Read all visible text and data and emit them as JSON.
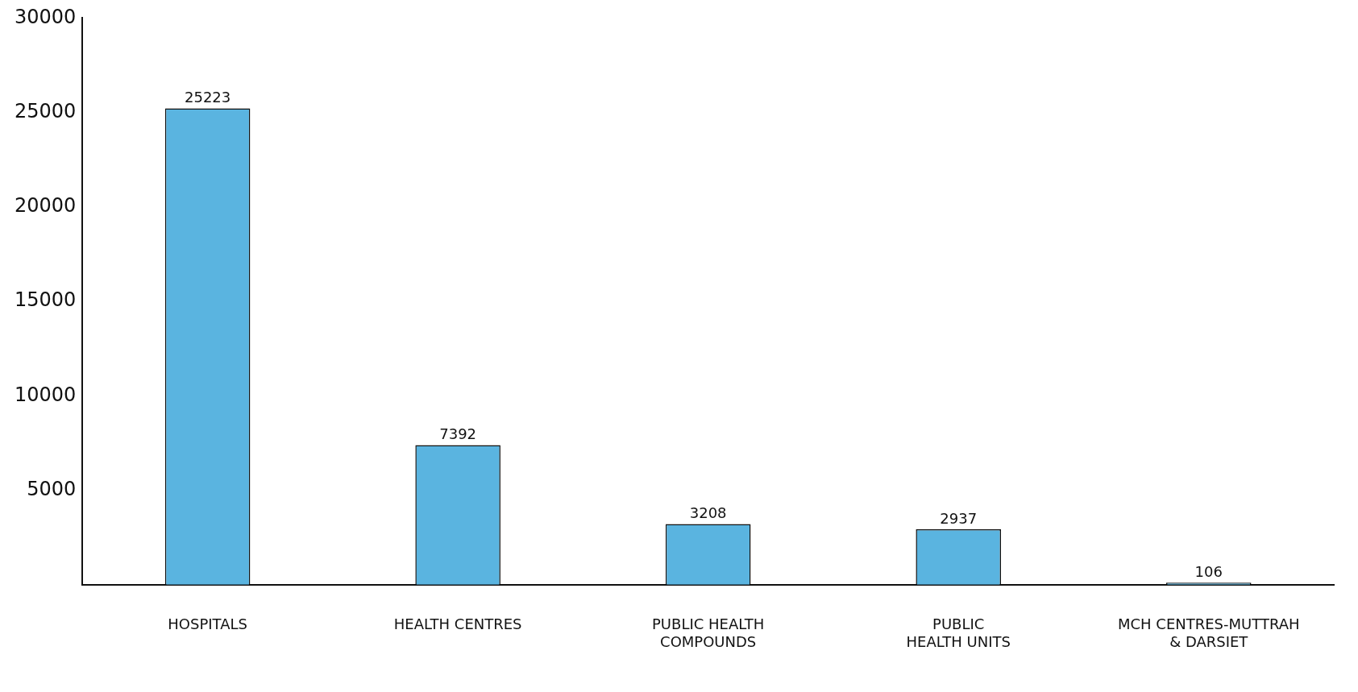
{
  "chart_data": {
    "type": "bar",
    "categories": [
      "HOSPITALS",
      "HEALTH CENTRES",
      "PUBLIC HEALTH COMPOUNDS",
      "PUBLIC HEALTH UNITS",
      "MCH CENTRES-MUTTRAH & DARSIET"
    ],
    "values": [
      25223,
      7392,
      3208,
      2937,
      106
    ],
    "color": "#5ab4e0",
    "ylim": [
      0,
      30000
    ],
    "yticks": [
      5000,
      10000,
      15000,
      20000,
      25000,
      30000
    ],
    "grid": false,
    "data_labels": true
  }
}
